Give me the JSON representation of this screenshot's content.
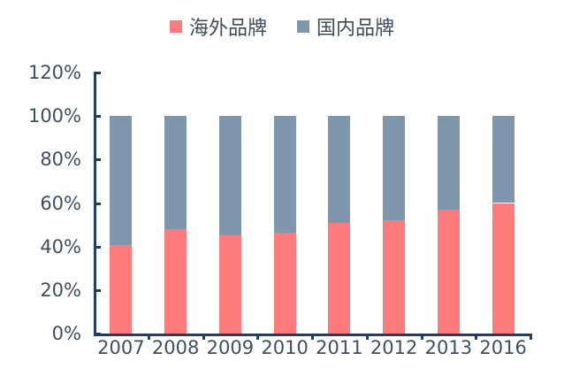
{
  "chart_data": {
    "type": "bar",
    "stacked": true,
    "percent": true,
    "title": "",
    "xlabel": "",
    "ylabel": "",
    "ylim": [
      0,
      120
    ],
    "yticks": [
      "0%",
      "20%",
      "40%",
      "60%",
      "80%",
      "100%",
      "120%"
    ],
    "categories": [
      "2007",
      "2008",
      "2009",
      "2010",
      "2011",
      "2012",
      "2013",
      "2016"
    ],
    "series": [
      {
        "name": "海外品牌",
        "color": "#ff7b7b",
        "values": [
          40.5,
          48,
          45,
          46.5,
          51,
          52,
          57,
          60
        ]
      },
      {
        "name": "国内品牌",
        "color": "#7f97ad",
        "values": [
          59.5,
          52,
          55,
          53.5,
          49,
          48,
          43,
          40
        ]
      }
    ],
    "legend_position": "top",
    "grid": false
  },
  "legend": [
    {
      "label": "海外品牌",
      "color": "#ff7b7b"
    },
    {
      "label": "国内品牌",
      "color": "#7f97ad"
    }
  ]
}
